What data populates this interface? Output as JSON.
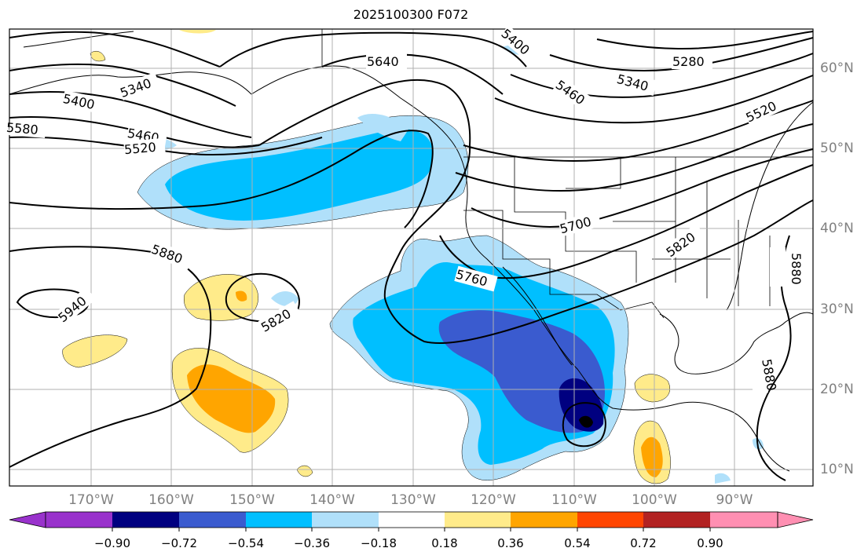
{
  "title": "2025100300 F072",
  "colors": {
    "ocean": "#ffffff",
    "grid": "#b0b0b0",
    "neg_090": "#000080",
    "neg_072": "#3a5bcf",
    "neg_054": "#00bfff",
    "neg_036": "#b0e0fa",
    "pos_018": "#ffeb8a",
    "pos_036": "#ffa500",
    "extend_min": "#9932cc",
    "c072": "#ff4500",
    "c090": "#b22222",
    "extend_max": "#ff8fb2"
  },
  "map": {
    "longitude_labels": [
      "170°W",
      "160°W",
      "150°W",
      "140°W",
      "130°W",
      "120°W",
      "110°W",
      "100°W",
      "90°W"
    ],
    "latitude_labels": [
      "60°N",
      "50°N",
      "40°N",
      "30°N",
      "20°N",
      "10°N"
    ],
    "contour_labels": [
      "5280",
      "5340",
      "5340",
      "5400",
      "5400",
      "5460",
      "5460",
      "5520",
      "5520",
      "5580",
      "5640",
      "5700",
      "5760",
      "5820",
      "5820",
      "5880",
      "5880",
      "5880",
      "5940"
    ]
  },
  "colorbar": {
    "ticks": [
      "−0.90",
      "−0.72",
      "−0.54",
      "−0.36",
      "−0.18",
      "0.18",
      "0.36",
      "0.54",
      "0.72",
      "0.90"
    ]
  }
}
